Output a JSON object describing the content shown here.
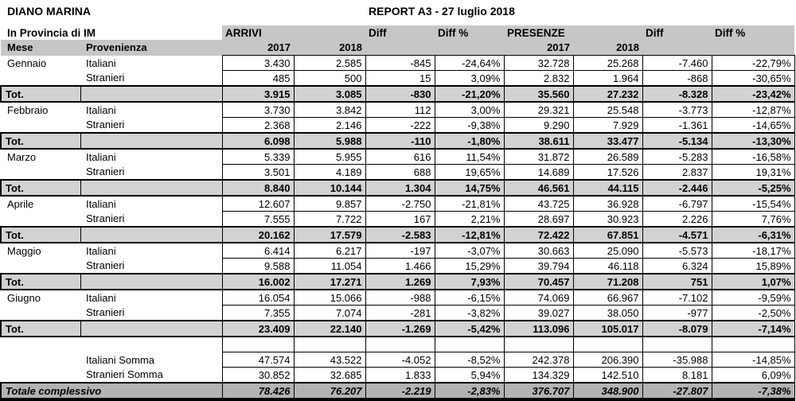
{
  "header": {
    "title": "DIANO MARINA",
    "subtitle": "In Provincia di IM",
    "report_title": "REPORT A3 - 27 luglio 2018"
  },
  "columns": {
    "mese": "Mese",
    "provenienza": "Provenienza",
    "arrivi": "ARRIVI",
    "presenze": "PRESENZE",
    "diff": "Diff",
    "diff_pct": "Diff %",
    "y2017": "2017",
    "y2018": "2018"
  },
  "rows": [
    {
      "type": "data",
      "mese": "Gennaio",
      "prov": "Italiani",
      "values": [
        "3.430",
        "2.585",
        "-845",
        "-24,64%",
        "32.728",
        "25.268",
        "-7.460",
        "-22,79%"
      ]
    },
    {
      "type": "data",
      "mese": "",
      "prov": "Stranieri",
      "values": [
        "485",
        "500",
        "15",
        "3,09%",
        "2.832",
        "1.964",
        "-868",
        "-30,65%"
      ]
    },
    {
      "type": "total",
      "label": "Tot.",
      "values": [
        "3.915",
        "3.085",
        "-830",
        "-21,20%",
        "35.560",
        "27.232",
        "-8.328",
        "-23,42%"
      ]
    },
    {
      "type": "data",
      "mese": "Febbraio",
      "prov": "Italiani",
      "values": [
        "3.730",
        "3.842",
        "112",
        "3,00%",
        "29.321",
        "25.548",
        "-3.773",
        "-12,87%"
      ]
    },
    {
      "type": "data",
      "mese": "",
      "prov": "Stranieri",
      "values": [
        "2.368",
        "2.146",
        "-222",
        "-9,38%",
        "9.290",
        "7.929",
        "-1.361",
        "-14,65%"
      ]
    },
    {
      "type": "total",
      "label": "Tot.",
      "values": [
        "6.098",
        "5.988",
        "-110",
        "-1,80%",
        "38.611",
        "33.477",
        "-5.134",
        "-13,30%"
      ]
    },
    {
      "type": "data",
      "mese": "Marzo",
      "prov": "Italiani",
      "values": [
        "5.339",
        "5.955",
        "616",
        "11,54%",
        "31.872",
        "26.589",
        "-5.283",
        "-16,58%"
      ]
    },
    {
      "type": "data",
      "mese": "",
      "prov": "Stranieri",
      "values": [
        "3.501",
        "4.189",
        "688",
        "19,65%",
        "14.689",
        "17.526",
        "2.837",
        "19,31%"
      ]
    },
    {
      "type": "total",
      "label": "Tot.",
      "values": [
        "8.840",
        "10.144",
        "1.304",
        "14,75%",
        "46.561",
        "44.115",
        "-2.446",
        "-5,25%"
      ]
    },
    {
      "type": "data",
      "mese": "Aprile",
      "prov": "Italiani",
      "values": [
        "12.607",
        "9.857",
        "-2.750",
        "-21,81%",
        "43.725",
        "36.928",
        "-6.797",
        "-15,54%"
      ]
    },
    {
      "type": "data",
      "mese": "",
      "prov": "Stranieri",
      "values": [
        "7.555",
        "7.722",
        "167",
        "2,21%",
        "28.697",
        "30.923",
        "2.226",
        "7,76%"
      ]
    },
    {
      "type": "total",
      "label": "Tot.",
      "values": [
        "20.162",
        "17.579",
        "-2.583",
        "-12,81%",
        "72.422",
        "67.851",
        "-4.571",
        "-6,31%"
      ]
    },
    {
      "type": "data",
      "mese": "Maggio",
      "prov": "Italiani",
      "values": [
        "6.414",
        "6.217",
        "-197",
        "-3,07%",
        "30.663",
        "25.090",
        "-5.573",
        "-18,17%"
      ]
    },
    {
      "type": "data",
      "mese": "",
      "prov": "Stranieri",
      "values": [
        "9.588",
        "11.054",
        "1.466",
        "15,29%",
        "39.794",
        "46.118",
        "6.324",
        "15,89%"
      ]
    },
    {
      "type": "total",
      "label": "Tot.",
      "values": [
        "16.002",
        "17.271",
        "1.269",
        "7,93%",
        "70.457",
        "71.208",
        "751",
        "1,07%"
      ]
    },
    {
      "type": "data",
      "mese": "Giugno",
      "prov": "Italiani",
      "values": [
        "16.054",
        "15.066",
        "-988",
        "-6,15%",
        "74.069",
        "66.967",
        "-7.102",
        "-9,59%"
      ]
    },
    {
      "type": "data",
      "mese": "",
      "prov": "Stranieri",
      "values": [
        "7.355",
        "7.074",
        "-281",
        "-3,82%",
        "39.027",
        "38.050",
        "-977",
        "-2,50%"
      ]
    },
    {
      "type": "total",
      "label": "Tot.",
      "values": [
        "23.409",
        "22.140",
        "-1.269",
        "-5,42%",
        "113.096",
        "105.017",
        "-8.079",
        "-7,14%"
      ]
    },
    {
      "type": "spacer",
      "mese": "",
      "prov": "",
      "values": [
        "",
        "",
        "",
        "",
        "",
        "",
        "",
        ""
      ]
    },
    {
      "type": "sum",
      "mese": "",
      "prov": "Italiani Somma",
      "values": [
        "47.574",
        "43.522",
        "-4.052",
        "-8,52%",
        "242.378",
        "206.390",
        "-35.988",
        "-14,85%"
      ]
    },
    {
      "type": "sum",
      "mese": "",
      "prov": "Stranieri Somma",
      "values": [
        "30.852",
        "32.685",
        "1.833",
        "5,94%",
        "134.329",
        "142.510",
        "8.181",
        "6,09%"
      ]
    },
    {
      "type": "grand",
      "label": "Totale complessivo",
      "values": [
        "78.426",
        "76.207",
        "-2.219",
        "-2,83%",
        "376.707",
        "348.900",
        "-27.807",
        "-7,38%"
      ]
    }
  ]
}
